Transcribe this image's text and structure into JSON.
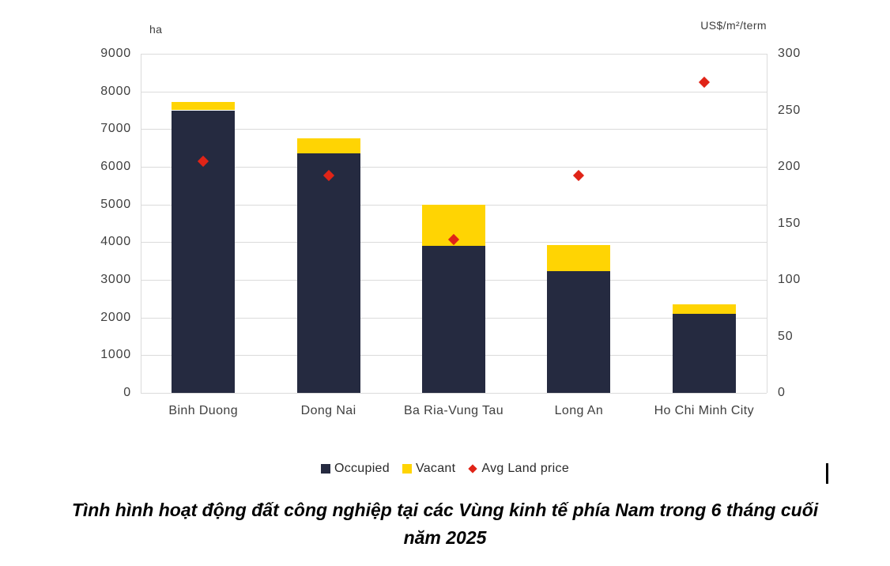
{
  "chart_data": {
    "type": "bar",
    "subtype": "stacked-column-with-scatter-overlay",
    "categories": [
      "Binh Duong",
      "Dong Nai",
      "Ba Ria-Vung Tau",
      "Long An",
      "Ho Chi Minh City"
    ],
    "series": [
      {
        "name": "Occupied",
        "type": "bar",
        "stack": "total",
        "axis": "left",
        "color": "#252a40",
        "values": [
          7500,
          6350,
          3900,
          3240,
          2090
        ]
      },
      {
        "name": "Vacant",
        "type": "bar",
        "stack": "total",
        "axis": "left",
        "color": "#ffd403",
        "values": [
          220,
          400,
          1100,
          680,
          250
        ]
      },
      {
        "name": "Avg Land price",
        "type": "scatter",
        "marker": "diamond",
        "axis": "right",
        "color": "#e02417",
        "values": [
          205,
          192,
          136,
          192,
          275
        ]
      }
    ],
    "y_left": {
      "label": "ha",
      "min": 0,
      "max": 9000,
      "step": 1000,
      "ticks": [
        0,
        1000,
        2000,
        3000,
        4000,
        5000,
        6000,
        7000,
        8000,
        9000
      ]
    },
    "y_right": {
      "label": "US$/m²/term",
      "min": 0,
      "max": 300,
      "step": 50,
      "ticks": [
        0,
        50,
        100,
        150,
        200,
        250,
        300
      ]
    },
    "grid": "horizontal",
    "legend_position": "bottom",
    "title": "Tình hình hoạt động đất công nghiệp tại các Vùng kinh tế phía Nam trong 6 tháng cuối năm 2025"
  },
  "colors": {
    "occupied": "#252a40",
    "vacant": "#ffd403",
    "land_price": "#e02417",
    "gridline": "#dbdbdb",
    "tick_text": "#3f3f3f"
  },
  "caption": {
    "line1": "Tình hình hoạt động đất công nghiệp tại các Vùng kinh tế phía Nam trong 6 tháng cuối",
    "line2": "năm 2025"
  }
}
